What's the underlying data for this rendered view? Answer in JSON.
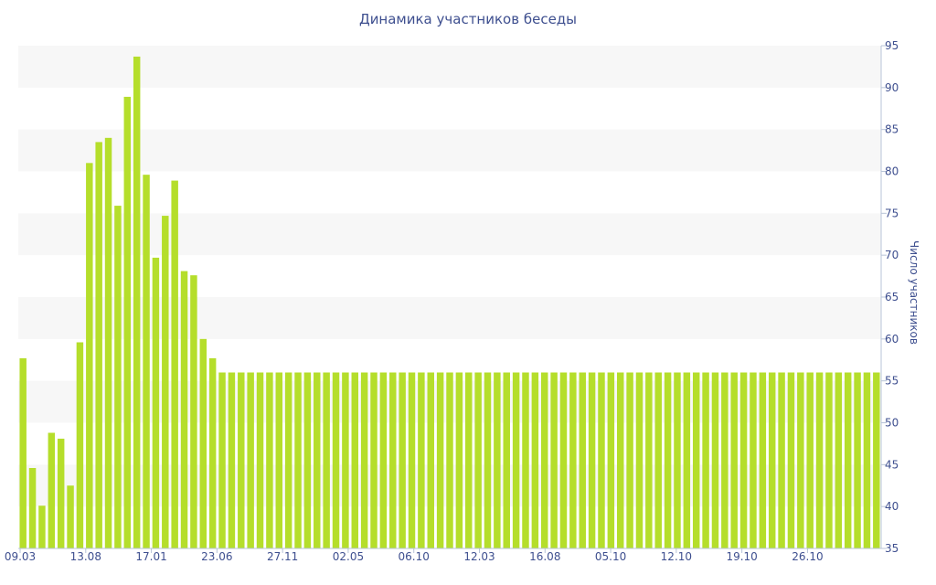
{
  "chart_data": {
    "type": "bar",
    "title": "Динамика участников беседы",
    "xlabel": "",
    "ylabel": "Число участников",
    "ylim": [
      35,
      95
    ],
    "y_ticks": [
      35,
      40,
      45,
      50,
      55,
      60,
      65,
      70,
      75,
      80,
      85,
      90,
      95
    ],
    "x_tick_labels": [
      "09.03",
      "13.08",
      "17.01",
      "23.06",
      "27.11",
      "02.05",
      "06.10",
      "12.03",
      "16.08",
      "05.10",
      "12.10",
      "19.10",
      "26.10"
    ],
    "values": [
      57.7,
      44.6,
      40.1,
      48.8,
      48.1,
      42.5,
      59.6,
      81.0,
      83.5,
      84.0,
      75.9,
      88.9,
      93.7,
      79.6,
      69.7,
      74.7,
      78.9,
      68.1,
      67.6,
      60.0,
      57.7,
      56,
      56,
      56,
      56,
      56,
      56,
      56,
      56,
      56,
      56,
      56,
      56,
      56,
      56,
      56,
      56,
      56,
      56,
      56,
      56,
      56,
      56,
      56,
      56,
      56,
      56,
      56,
      56,
      56,
      56,
      56,
      56,
      56,
      56,
      56,
      56,
      56,
      56,
      56,
      56,
      56,
      56,
      56,
      56,
      56,
      56,
      56,
      56,
      56,
      56,
      56,
      56,
      56,
      56,
      56,
      56,
      56,
      56,
      56,
      56,
      56,
      56,
      56,
      56,
      56,
      56,
      56,
      56,
      56,
      56
    ],
    "grid": "alternating horizontal bands",
    "bar_color": "#b5de2b",
    "text_color": "#3e4f8f"
  }
}
